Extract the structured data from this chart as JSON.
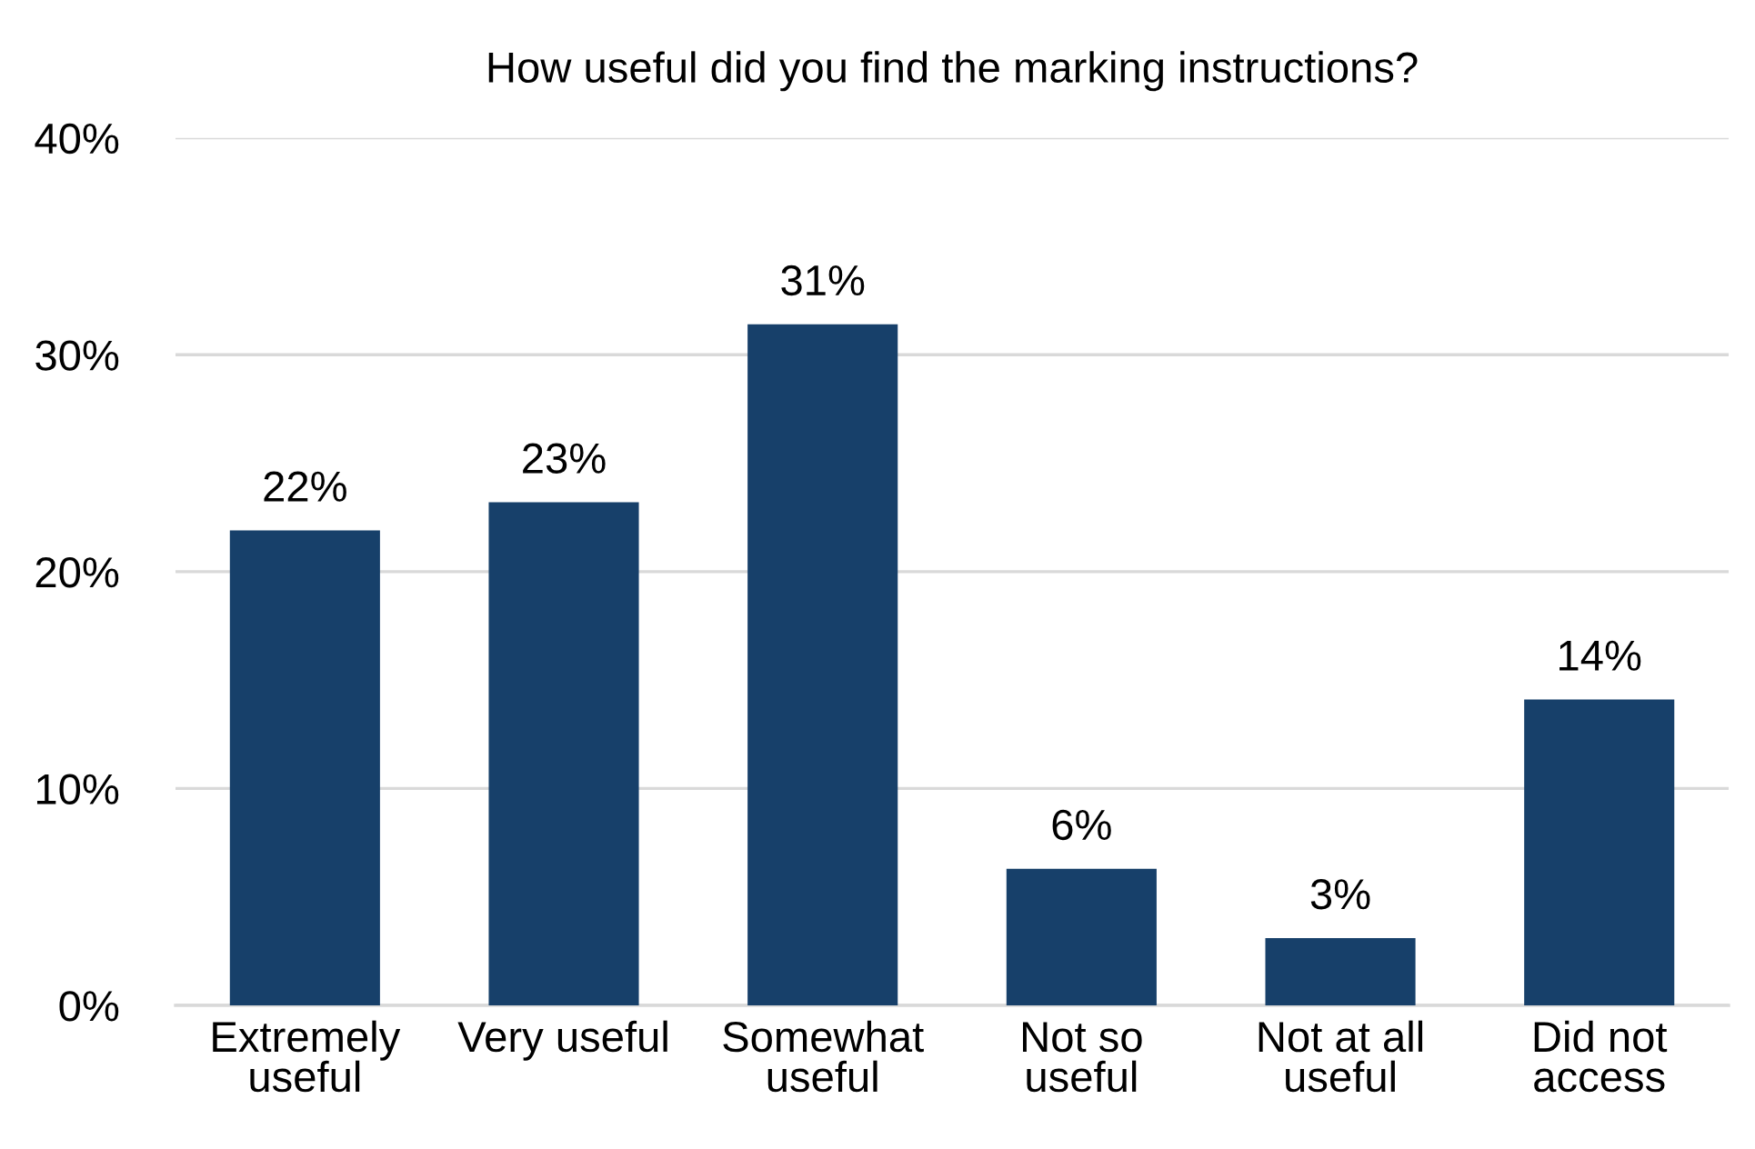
{
  "chart_data": {
    "type": "bar",
    "title": "How useful did you find the marking instructions?",
    "categories": [
      "Extremely\nuseful",
      "Very useful",
      "Somewhat\nuseful",
      "Not so\nuseful",
      "Not at all\nuseful",
      "Did not\naccess"
    ],
    "values": [
      21.9,
      23.2,
      31.4,
      6.3,
      3.1,
      14.1
    ],
    "value_labels": [
      "22%",
      "23%",
      "31%",
      "6%",
      "3%",
      "14%"
    ],
    "color": "#17406a",
    "ylim": [
      0,
      40
    ],
    "yticks": [
      {
        "value": 0,
        "label": "0%"
      },
      {
        "value": 10,
        "label": "10%"
      },
      {
        "value": 20,
        "label": "20%"
      },
      {
        "value": 30,
        "label": "30%"
      },
      {
        "value": 40,
        "label": "40%"
      }
    ],
    "grid": "y",
    "legend": false
  }
}
